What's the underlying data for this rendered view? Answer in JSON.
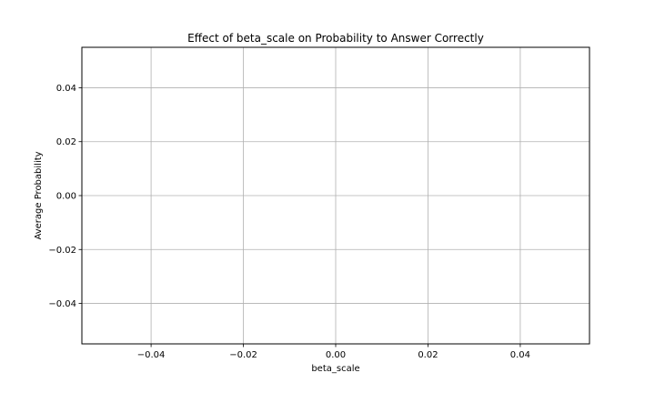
{
  "chart_data": {
    "type": "line",
    "title": "Effect of beta_scale on Probability to Answer Correctly",
    "xlabel": "beta_scale",
    "ylabel": "Average Probability",
    "series": [],
    "xlim": [
      -0.055,
      0.055
    ],
    "ylim": [
      -0.055,
      0.055
    ],
    "xticks": [
      -0.04,
      -0.02,
      0.0,
      0.02,
      0.04
    ],
    "xtick_labels": [
      "−0.04",
      "−0.02",
      "0.00",
      "0.02",
      "0.04"
    ],
    "yticks": [
      0.04,
      0.02,
      0.0,
      -0.02,
      -0.04
    ],
    "ytick_labels": [
      "0.04",
      "0.02",
      "0.00",
      "−0.02",
      "−0.04"
    ],
    "grid": true,
    "colors": {
      "grid": "#b0b0b0",
      "axes": "#000000",
      "background": "#ffffff"
    }
  }
}
